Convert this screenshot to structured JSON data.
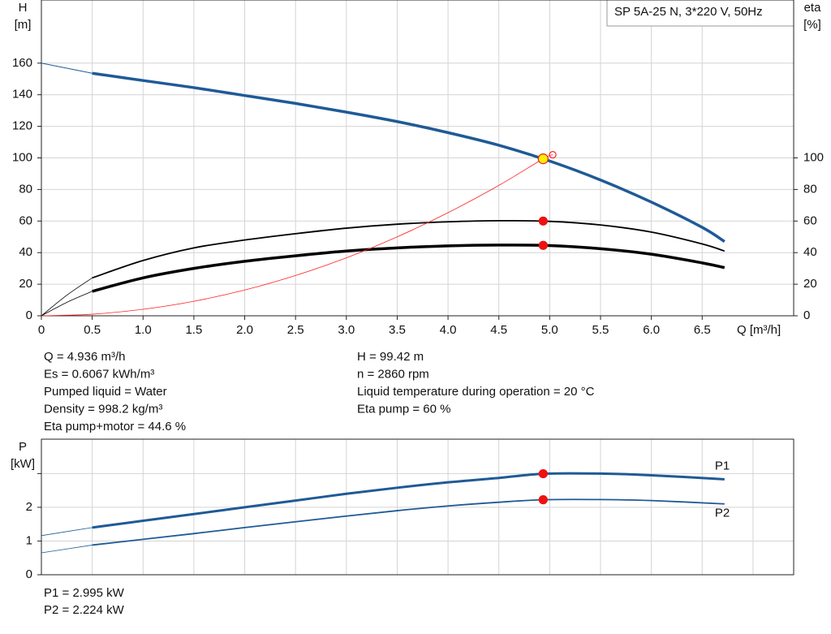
{
  "chart_data": [
    {
      "type": "line",
      "title": "SP 5A-25 N, 3*220 V, 50Hz",
      "y_label": "H",
      "y_unit": "[m]",
      "y2_label": "eta",
      "y2_unit": "[%]",
      "x_label": "Q [m³/h]",
      "xlim": [
        0,
        7.4
      ],
      "xticks": [
        0,
        0.5,
        {
          "value": 1,
          "label": "1.0"
        },
        1.5,
        {
          "value": 2,
          "label": "2.0"
        },
        2.5,
        {
          "value": 3,
          "label": "3.0"
        },
        3.5,
        {
          "value": 4,
          "label": "4.0"
        },
        4.5,
        {
          "value": 5,
          "label": "5.0"
        },
        5.5,
        {
          "value": 6,
          "label": "6.0"
        },
        6.5
      ],
      "ylim": [
        0,
        200
      ],
      "yticks": [
        0,
        20,
        40,
        60,
        80,
        100,
        120,
        140,
        160
      ],
      "y2lim": [
        0,
        200
      ],
      "y2ticks": [
        0,
        20,
        40,
        60,
        80,
        100
      ],
      "grid": true,
      "series": [
        {
          "color": "#1f5a96",
          "width": 1,
          "x": [
            0,
            0.5
          ],
          "values": [
            160,
            153.6
          ]
        },
        {
          "color": "#1f5a96",
          "width": 3.5,
          "x": [
            0.5,
            1,
            1.5,
            2,
            2.5,
            3,
            3.5,
            4,
            4.5,
            5,
            5.5,
            6,
            6.5,
            6.72
          ],
          "values": [
            153.6,
            149,
            144.5,
            139.5,
            134.5,
            129,
            123,
            116,
            108,
            98,
            86,
            72,
            56,
            47
          ]
        },
        {
          "color": "#000000",
          "width": 0.8,
          "axis": "y2",
          "x": [
            0,
            0.25,
            0.5
          ],
          "values": [
            0,
            13,
            24
          ]
        },
        {
          "color": "#000000",
          "width": 1.8,
          "axis": "y2",
          "x": [
            0.5,
            1,
            1.5,
            2,
            2.5,
            3,
            3.5,
            4,
            4.5,
            5,
            5.5,
            6,
            6.5,
            6.72
          ],
          "values": [
            24,
            35,
            43,
            48,
            52,
            55.5,
            58,
            59.5,
            60.2,
            59.8,
            57.5,
            53,
            45.5,
            41
          ]
        },
        {
          "color": "#000000",
          "width": 0.8,
          "axis": "y2",
          "x": [
            0,
            0.25,
            0.5
          ],
          "values": [
            0,
            8.5,
            15.5
          ]
        },
        {
          "color": "#000000",
          "width": 3.5,
          "axis": "y2",
          "x": [
            0.5,
            1,
            1.5,
            2,
            2.5,
            3,
            3.5,
            4,
            4.5,
            5,
            5.5,
            6,
            6.5,
            6.72
          ],
          "values": [
            15.5,
            24,
            30,
            34.5,
            38,
            41,
            43,
            44.3,
            44.8,
            44.5,
            42.5,
            39,
            33.5,
            30.5
          ]
        },
        {
          "color": "#ff2020",
          "width": 0.8,
          "x": [
            0,
            0.5,
            1,
            1.5,
            2,
            2.5,
            3,
            3.5,
            4,
            4.5,
            4.936,
            5.03
          ],
          "values": [
            0,
            1,
            4.1,
            9.2,
            16.3,
            25.5,
            36.7,
            50,
            65.3,
            82.6,
            99.42,
            102
          ]
        }
      ],
      "markers": [
        {
          "x": 5.03,
          "y": 102,
          "fill": "none",
          "stroke": "#ff2020",
          "r": 4
        },
        {
          "x": 4.936,
          "y": 60,
          "axis": "y2",
          "fill": "#ee1111",
          "stroke": "#ee1111",
          "r": 5
        },
        {
          "x": 4.936,
          "y": 44.6,
          "axis": "y2",
          "fill": "#ee1111",
          "stroke": "#ee1111",
          "r": 5
        },
        {
          "x": 4.936,
          "y": 99.42,
          "fill": "#ffee00",
          "stroke": "#e02020",
          "r": 6
        }
      ],
      "notes_left": [
        "Q = 4.936 m³/h",
        "Es = 0.6067 kWh/m³",
        "Pumped liquid = Water",
        "Density = 998.2 kg/m³",
        "Eta pump+motor = 44.6 %"
      ],
      "notes_right": [
        "H = 99.42 m",
        "n = 2860 rpm",
        "Liquid temperature during operation = 20 °C",
        "Eta pump = 60 %"
      ]
    },
    {
      "type": "line",
      "y_label": "P",
      "y_unit": "[kW]",
      "xlim": [
        0,
        7.4
      ],
      "xticks": [
        0,
        0.5,
        1,
        1.5,
        2,
        2.5,
        3,
        3.5,
        4,
        4.5,
        5,
        5.5,
        6,
        6.5,
        7
      ],
      "ylim": [
        0,
        4.02
      ],
      "yticks": [
        0,
        1,
        2,
        {
          "value": 3,
          "label": null
        }
      ],
      "grid": true,
      "series": [
        {
          "color": "#1f5a96",
          "width": 0.8,
          "x": [
            0,
            0.5
          ],
          "values": [
            1.16,
            1.4
          ]
        },
        {
          "name": "P1",
          "color": "#1f5a96",
          "width": 3,
          "x": [
            0.5,
            1,
            1.5,
            2,
            2.5,
            3,
            3.5,
            4,
            4.5,
            4.936,
            5.5,
            6,
            6.72
          ],
          "values": [
            1.4,
            1.6,
            1.8,
            2.0,
            2.2,
            2.4,
            2.58,
            2.74,
            2.87,
            2.995,
            3.0,
            2.95,
            2.83
          ]
        },
        {
          "color": "#1f5a96",
          "width": 0.8,
          "x": [
            0,
            0.5
          ],
          "values": [
            0.65,
            0.88
          ]
        },
        {
          "name": "P2",
          "color": "#1f5a96",
          "width": 1.8,
          "x": [
            0.5,
            1,
            1.5,
            2,
            2.5,
            3,
            3.5,
            4,
            4.5,
            4.936,
            5.5,
            6,
            6.72
          ],
          "values": [
            0.88,
            1.05,
            1.22,
            1.4,
            1.57,
            1.74,
            1.9,
            2.04,
            2.15,
            2.224,
            2.23,
            2.2,
            2.1
          ]
        }
      ],
      "markers": [
        {
          "x": 4.936,
          "y": 2.995,
          "fill": "#ee1111",
          "stroke": "#ee1111",
          "r": 5
        },
        {
          "x": 4.936,
          "y": 2.224,
          "fill": "#ee1111",
          "stroke": "#ee1111",
          "r": 5
        }
      ],
      "notes_left": [
        "P1 = 2.995 kW",
        "P2 = 2.224 kW"
      ]
    }
  ]
}
